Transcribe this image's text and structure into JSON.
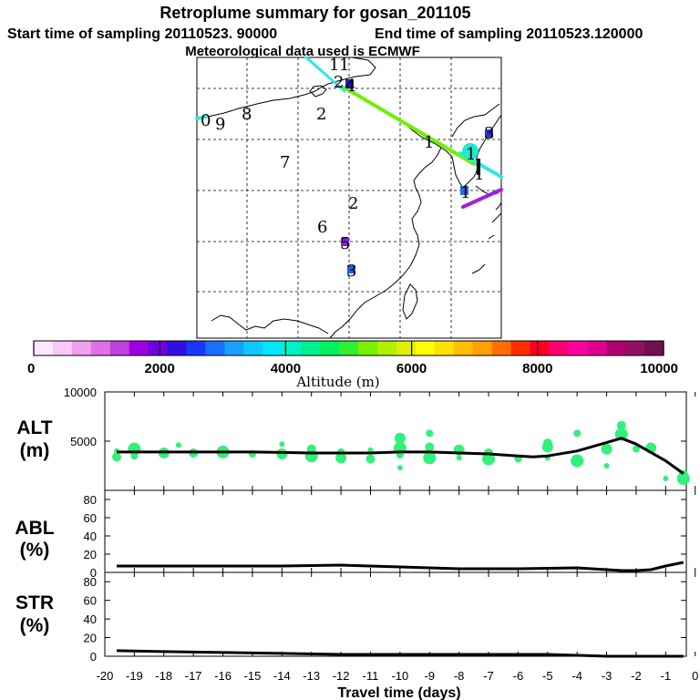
{
  "header": {
    "title": "Retroplume summary for gosan_201105",
    "start_label": "Start time of sampling 20110523. 90000",
    "end_label": "End time of sampling 20110523.120000",
    "met_label": "Meteorological data used is ECMWF"
  },
  "colorbar": {
    "ticks": [
      "0",
      "2000",
      "4000",
      "6000",
      "8000",
      "10000"
    ],
    "label": "Altitude (m)",
    "colors": [
      "#ffe8ff",
      "#f8c8f8",
      "#f0a0f0",
      "#e070e8",
      "#c040e0",
      "#a000e0",
      "#7000e0",
      "#3010e0",
      "#1838ff",
      "#1870ff",
      "#18a0ff",
      "#10c8ff",
      "#00e8ff",
      "#00f0c8",
      "#00f090",
      "#00f060",
      "#30f030",
      "#78f000",
      "#b0f000",
      "#e0f000",
      "#ffff00",
      "#ffe000",
      "#ffc000",
      "#ffa000",
      "#ff7000",
      "#ff3000",
      "#ff0020",
      "#ff0070",
      "#ff00a0",
      "#e00090",
      "#b00070",
      "#901060",
      "#701050"
    ]
  },
  "map": {
    "labels": [
      {
        "text": "1",
        "color": "#000000"
      },
      {
        "text": "1",
        "color": "#00c8c8"
      },
      {
        "text": "2",
        "color": "#000000"
      },
      {
        "text": "4",
        "color": "#2020c0"
      },
      {
        "text": "0",
        "color": "#00a0c0"
      },
      {
        "text": "9",
        "color": "#00a0c0"
      },
      {
        "text": "8",
        "color": "#00a080"
      },
      {
        "text": "2",
        "color": "#ffa000"
      },
      {
        "text": "7",
        "color": "#00c8a0"
      },
      {
        "text": "1",
        "color": "#000000"
      },
      {
        "text": "3",
        "color": "#4020c0"
      },
      {
        "text": "1",
        "color": "#000000"
      },
      {
        "text": "1",
        "color": "#000000"
      },
      {
        "text": "1",
        "color": "#2060c0"
      },
      {
        "text": "2",
        "color": "#00a0c0"
      },
      {
        "text": "6",
        "color": "#00c8a0"
      },
      {
        "text": "5",
        "color": "#8020e0"
      },
      {
        "text": "3",
        "color": "#2060e0"
      }
    ]
  },
  "chart_data": [
    {
      "type": "line",
      "panel": "ALT",
      "title": "ALT (m)",
      "ylabel_line1": "ALT",
      "ylabel_line2": "(m)",
      "ylim": [
        0,
        10000
      ],
      "ytick_labels": [
        "5000",
        "10000"
      ],
      "xlim": [
        -20,
        -0.3
      ],
      "x": [
        -19.6,
        -19,
        -18,
        -17,
        -16,
        -15,
        -14,
        -13,
        -12,
        -11,
        -10,
        -9,
        -8,
        -7,
        -6,
        -5.5,
        -5,
        -4,
        -2.5,
        -2,
        -1,
        -0.4
      ],
      "y": [
        3900,
        3900,
        3900,
        3900,
        3900,
        3900,
        3850,
        3800,
        3800,
        3800,
        3900,
        3900,
        3800,
        3700,
        3500,
        3400,
        3500,
        4000,
        5300,
        4700,
        3000,
        1700
      ],
      "scatter_series": {
        "name": "plume altitude clusters",
        "x": [
          -19.6,
          -19.6,
          -19,
          -19,
          -18,
          -17.5,
          -17,
          -16,
          -15,
          -14,
          -14,
          -13,
          -13,
          -12,
          -12,
          -11,
          -11,
          -10,
          -10,
          -10,
          -10,
          -9,
          -9,
          -9,
          -8,
          -8,
          -7,
          -7,
          -6,
          -5,
          -5,
          -5,
          -4,
          -4,
          -3,
          -3,
          -2.5,
          -2.5,
          -2,
          -1.5,
          -1,
          -0.4,
          -0.4
        ],
        "y": [
          4000,
          3400,
          4200,
          3500,
          3800,
          4600,
          3800,
          3900,
          3700,
          3700,
          4700,
          4200,
          3500,
          3900,
          3300,
          4100,
          3200,
          4300,
          3600,
          5300,
          2300,
          4400,
          3300,
          5800,
          4100,
          3300,
          3800,
          3200,
          3200,
          4400,
          3300,
          4800,
          3000,
          5800,
          4200,
          2500,
          6600,
          5700,
          4200,
          4300,
          1200,
          1600,
          1200
        ]
      }
    },
    {
      "type": "line",
      "panel": "ABL",
      "ylabel_line1": "ABL",
      "ylabel_line2": "(%)",
      "ylim": [
        0,
        90
      ],
      "ytick_labels": [
        "0",
        "20",
        "40",
        "60",
        "80"
      ],
      "xlim": [
        -20,
        -0.3
      ],
      "x": [
        -19.6,
        -18,
        -16,
        -14,
        -12,
        -10,
        -8,
        -6,
        -4,
        -3,
        -2.5,
        -2,
        -1.5,
        -1,
        -0.4
      ],
      "y": [
        7,
        7,
        7,
        7,
        8,
        6,
        4,
        4,
        5,
        3,
        2,
        2,
        3,
        7,
        11
      ]
    },
    {
      "type": "line",
      "panel": "STR",
      "ylabel_line1": "STR",
      "ylabel_line2": "(%)",
      "ylim": [
        0,
        90
      ],
      "ytick_labels": [
        "0",
        "20",
        "40",
        "60",
        "80"
      ],
      "xlim": [
        -20,
        -0.3
      ],
      "x": [
        -19.6,
        -18,
        -16,
        -14,
        -12,
        -10,
        -8,
        -6,
        -5,
        -4,
        -3,
        -2,
        -1,
        -0.4
      ],
      "y": [
        6,
        5,
        4,
        3,
        2,
        2,
        2,
        2,
        2,
        1,
        0,
        0,
        0,
        0
      ],
      "xlabel": "Travel time (days)",
      "xtick_labels": [
        "-20",
        "-19",
        "-18",
        "-17",
        "-16",
        "-15",
        "-14",
        "-13",
        "-12",
        "-11",
        "-10",
        "-9",
        "-8",
        "-7",
        "-6",
        "-5",
        "-4",
        "-3",
        "-2",
        "-1",
        "0"
      ]
    }
  ]
}
